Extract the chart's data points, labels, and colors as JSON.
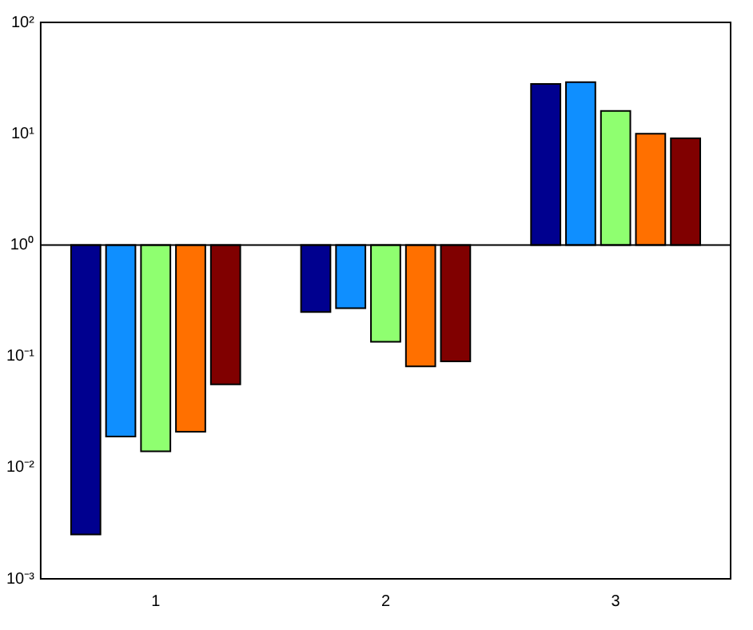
{
  "chart_data": {
    "type": "bar",
    "categories": [
      "1",
      "2",
      "3"
    ],
    "series": [
      {
        "color": "#00008f",
        "values": [
          -0.9975,
          -0.75,
          27
        ],
        "base": [
          1,
          1,
          1
        ]
      },
      {
        "color": "#0f8fff",
        "values": [
          -0.981,
          -0.73,
          28
        ],
        "base": [
          1,
          1,
          1
        ]
      },
      {
        "color": "#8fff70",
        "values": [
          -0.986,
          -0.865,
          15
        ],
        "base": [
          1,
          1,
          1
        ]
      },
      {
        "color": "#ff7000",
        "values": [
          -0.979,
          -0.919,
          9
        ],
        "base": [
          1,
          1,
          1
        ]
      },
      {
        "color": "#800000",
        "values": [
          -0.944,
          -0.91,
          8.1
        ],
        "base": [
          1,
          1,
          1
        ]
      }
    ],
    "log": "y",
    "ylim": [
      0.001,
      100
    ],
    "yticks": [
      {
        "value": 0.001,
        "label": "10⁻³"
      },
      {
        "value": 0.01,
        "label": "10⁻²"
      },
      {
        "value": 0.1,
        "label": "10⁻¹"
      },
      {
        "value": 1,
        "label": "10⁰"
      },
      {
        "value": 10,
        "label": "10¹"
      },
      {
        "value": 100,
        "label": "10²"
      }
    ],
    "ref_lines": [
      {
        "axis": "y",
        "value": 1,
        "color": "#000000"
      }
    ],
    "grid": false,
    "legend": false
  }
}
